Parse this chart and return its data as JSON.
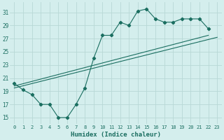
{
  "xlabel": "Humidex (Indice chaleur)",
  "background_color": "#d4eeed",
  "grid_color": "#b8d8d6",
  "line_color": "#1a6e60",
  "xlim": [
    -0.5,
    23.5
  ],
  "ylim": [
    14.0,
    32.5
  ],
  "yticks": [
    15,
    17,
    19,
    21,
    23,
    25,
    27,
    29,
    31
  ],
  "xticks": [
    0,
    1,
    2,
    3,
    4,
    5,
    6,
    7,
    8,
    9,
    10,
    11,
    12,
    13,
    14,
    15,
    16,
    17,
    18,
    19,
    20,
    21,
    22,
    23
  ],
  "series1_x": [
    0,
    1,
    2,
    3,
    4,
    5,
    6,
    7,
    8,
    9,
    10,
    11,
    12,
    13,
    14,
    15,
    16,
    17,
    18,
    19,
    20,
    21,
    22
  ],
  "series1_y": [
    20.2,
    19.2,
    18.5,
    17.0,
    17.0,
    15.0,
    15.0,
    17.0,
    19.5,
    24.0,
    27.5,
    27.5,
    29.5,
    29.0,
    31.2,
    31.5,
    30.0,
    29.5,
    29.5,
    30.0,
    30.0,
    30.0,
    28.5
  ],
  "series2_x": [
    0,
    22
  ],
  "series2_y": [
    19.8,
    27.5
  ],
  "series3_x": [
    0,
    23
  ],
  "series3_y": [
    19.5,
    27.2
  ]
}
